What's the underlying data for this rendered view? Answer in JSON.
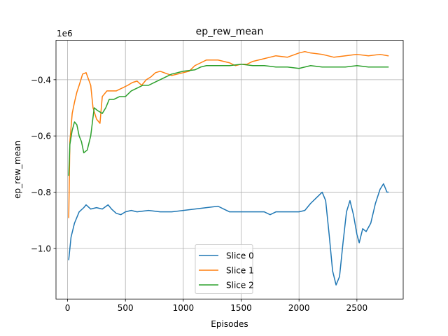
{
  "chart_data": {
    "type": "line",
    "title": "ep_rew_mean",
    "xlabel": "Episodes",
    "ylabel": "ep_rew_mean",
    "y_offset_label": "1e6",
    "xlim": [
      -100,
      2900
    ],
    "ylim": [
      -1.18,
      -0.26
    ],
    "xticks": [
      0,
      500,
      1000,
      1500,
      2000,
      2500
    ],
    "yticks": [
      -1.0,
      -0.8,
      -0.6,
      -0.4
    ],
    "ytick_labels": [
      "−1.0",
      "−0.8",
      "−0.6",
      "−0.4"
    ],
    "grid": true,
    "legend_position": "lower center",
    "series": [
      {
        "name": "Slice 0",
        "color": "#1f77b4",
        "x": [
          10,
          30,
          60,
          100,
          140,
          160,
          200,
          250,
          300,
          350,
          380,
          420,
          460,
          500,
          550,
          600,
          700,
          800,
          900,
          1000,
          1100,
          1200,
          1300,
          1350,
          1400,
          1500,
          1600,
          1700,
          1750,
          1800,
          1900,
          2000,
          2050,
          2100,
          2150,
          2200,
          2230,
          2260,
          2290,
          2320,
          2350,
          2380,
          2410,
          2440,
          2470,
          2500,
          2520,
          2550,
          2580,
          2620,
          2660,
          2700,
          2730,
          2760,
          2770
        ],
        "y": [
          -1.04,
          -0.96,
          -0.91,
          -0.87,
          -0.855,
          -0.845,
          -0.86,
          -0.855,
          -0.86,
          -0.845,
          -0.86,
          -0.875,
          -0.88,
          -0.87,
          -0.865,
          -0.87,
          -0.865,
          -0.87,
          -0.87,
          -0.865,
          -0.86,
          -0.855,
          -0.85,
          -0.86,
          -0.87,
          -0.87,
          -0.87,
          -0.87,
          -0.88,
          -0.87,
          -0.87,
          -0.87,
          -0.865,
          -0.84,
          -0.82,
          -0.8,
          -0.83,
          -0.95,
          -1.08,
          -1.13,
          -1.1,
          -0.98,
          -0.87,
          -0.83,
          -0.88,
          -0.95,
          -0.98,
          -0.93,
          -0.94,
          -0.91,
          -0.84,
          -0.79,
          -0.77,
          -0.8,
          -0.8
        ]
      },
      {
        "name": "Slice 1",
        "color": "#ff7f0e",
        "x": [
          10,
          20,
          40,
          60,
          80,
          100,
          130,
          160,
          200,
          220,
          250,
          280,
          300,
          340,
          380,
          420,
          470,
          520,
          560,
          600,
          640,
          680,
          720,
          760,
          800,
          900,
          1000,
          1050,
          1100,
          1150,
          1200,
          1250,
          1300,
          1350,
          1400,
          1450,
          1500,
          1550,
          1600,
          1650,
          1700,
          1800,
          1900,
          2000,
          2050,
          2100,
          2200,
          2300,
          2400,
          2500,
          2600,
          2700,
          2770
        ],
        "y": [
          -0.89,
          -0.62,
          -0.52,
          -0.48,
          -0.445,
          -0.42,
          -0.38,
          -0.375,
          -0.42,
          -0.5,
          -0.54,
          -0.555,
          -0.46,
          -0.44,
          -0.44,
          -0.44,
          -0.43,
          -0.42,
          -0.41,
          -0.405,
          -0.42,
          -0.4,
          -0.39,
          -0.375,
          -0.37,
          -0.385,
          -0.375,
          -0.37,
          -0.35,
          -0.34,
          -0.33,
          -0.33,
          -0.33,
          -0.335,
          -0.34,
          -0.35,
          -0.345,
          -0.345,
          -0.335,
          -0.33,
          -0.325,
          -0.315,
          -0.32,
          -0.305,
          -0.3,
          -0.305,
          -0.31,
          -0.32,
          -0.315,
          -0.31,
          -0.315,
          -0.31,
          -0.315
        ]
      },
      {
        "name": "Slice 2",
        "color": "#2ca02c",
        "x": [
          10,
          20,
          40,
          60,
          80,
          100,
          120,
          140,
          170,
          200,
          230,
          260,
          300,
          330,
          360,
          400,
          450,
          500,
          550,
          600,
          650,
          700,
          750,
          800,
          850,
          900,
          1000,
          1100,
          1150,
          1200,
          1300,
          1400,
          1500,
          1600,
          1700,
          1800,
          1900,
          2000,
          2100,
          2200,
          2300,
          2400,
          2500,
          2600,
          2700,
          2770
        ],
        "y": [
          -0.74,
          -0.63,
          -0.58,
          -0.55,
          -0.56,
          -0.6,
          -0.62,
          -0.66,
          -0.65,
          -0.6,
          -0.5,
          -0.51,
          -0.52,
          -0.5,
          -0.47,
          -0.47,
          -0.46,
          -0.46,
          -0.44,
          -0.43,
          -0.42,
          -0.42,
          -0.41,
          -0.4,
          -0.39,
          -0.38,
          -0.37,
          -0.365,
          -0.355,
          -0.35,
          -0.35,
          -0.35,
          -0.345,
          -0.35,
          -0.35,
          -0.355,
          -0.355,
          -0.36,
          -0.35,
          -0.355,
          -0.355,
          -0.355,
          -0.35,
          -0.355,
          -0.355,
          -0.355
        ]
      }
    ]
  }
}
